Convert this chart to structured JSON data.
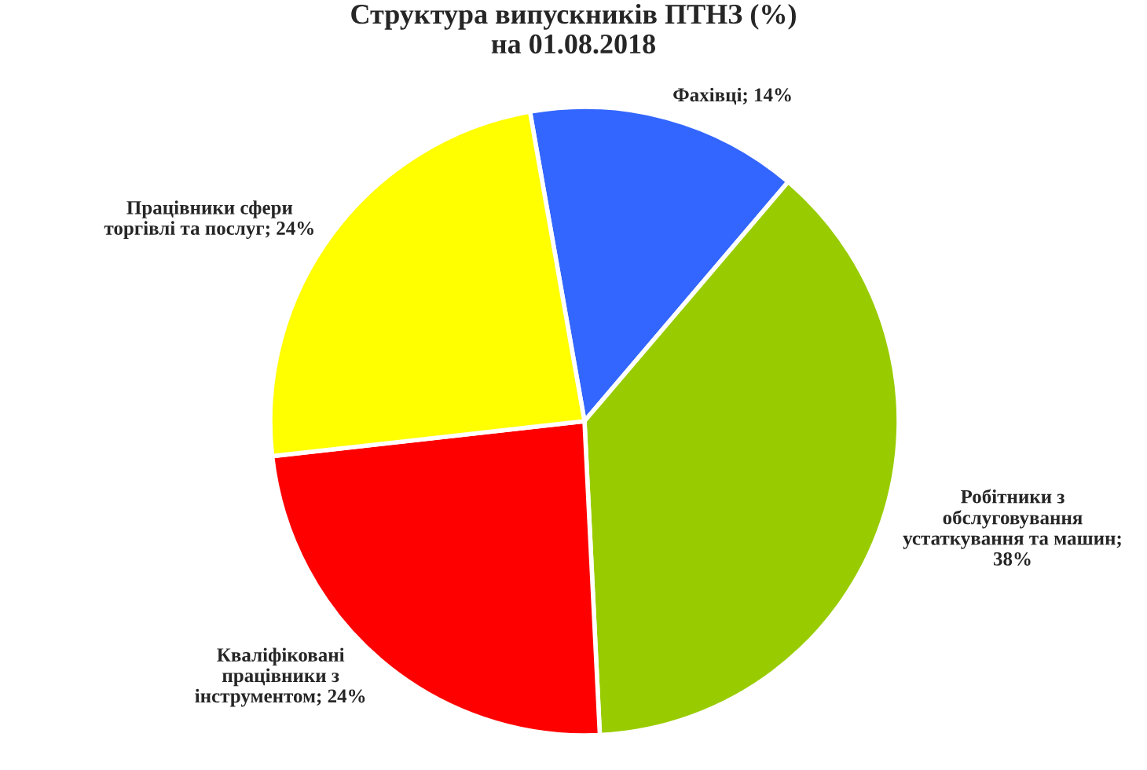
{
  "chart_data": {
    "type": "pie",
    "title": "Структура випускників ПТНЗ (%)\nна 01.08.2018",
    "categories": [
      "Фахівці; 14%",
      "Робітники з\nобслуговування\nустаткування та машин;\n38%",
      "Кваліфіковані\nпрацівники з\nінструментом; 24%",
      "Працівники сфери\nторгівлі та послуг; 24%"
    ],
    "values": [
      14,
      38,
      24,
      24
    ],
    "colors": [
      "#3366ff",
      "#99cc00",
      "#ff0000",
      "#ffff00"
    ],
    "legend": false
  }
}
